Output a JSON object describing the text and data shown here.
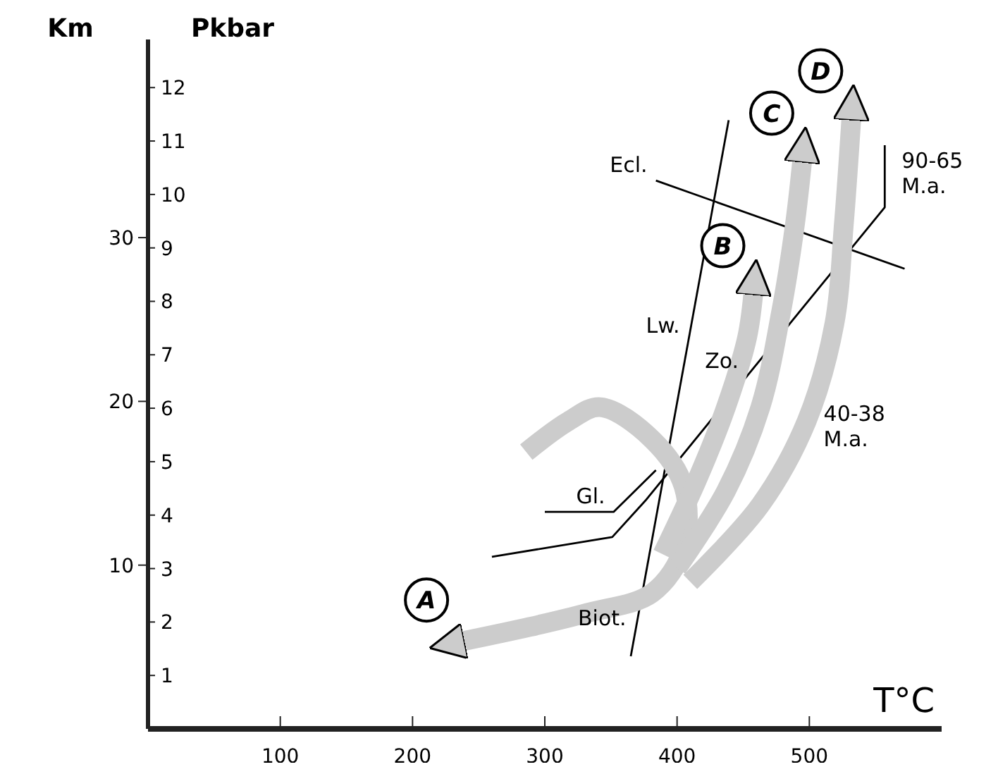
{
  "chart_data": {
    "type": "line",
    "xlabel": "T°C",
    "ylabel": "Pkbar",
    "y2label": "Km",
    "xlim": [
      0,
      600
    ],
    "xticks": [
      100,
      200,
      300,
      400,
      500
    ],
    "ylim": [
      0,
      12.9
    ],
    "yticks": [
      1,
      2,
      3,
      4,
      5,
      6,
      7,
      8,
      9,
      10,
      11,
      12
    ],
    "y2lim": [
      0,
      42.1
    ],
    "y2ticks": [
      10,
      20,
      30
    ],
    "marker": "none",
    "line_style": "solid",
    "series": [
      {
        "color": "#000000",
        "x": [
          439,
          365
        ],
        "values": [
          11.39,
          1.36
        ]
      },
      {
        "color": "#000000",
        "x": [
          384,
          572
        ],
        "values": [
          10.26,
          8.61
        ]
      },
      {
        "color": "#000000",
        "x": [
          557,
          557,
          376,
          351,
          260
        ],
        "values": [
          10.92,
          9.76,
          4.27,
          3.59,
          3.22
        ]
      },
      {
        "color": "#000000",
        "x": [
          300,
          352,
          384
        ],
        "values": [
          4.06,
          4.06,
          4.84
        ]
      },
      {
        "name": "A",
        "color": "#cccccc",
        "x": [
          286,
          318,
          342,
          381,
          405,
          405,
          381,
          332,
          289,
          234
        ],
        "values": [
          5.18,
          5.76,
          6.02,
          5.42,
          4.53,
          3.4,
          2.54,
          2.17,
          1.91,
          1.62
        ]
      },
      {
        "name": "B",
        "color": "#cccccc",
        "x": [
          389,
          416,
          437,
          453,
          458
        ],
        "values": [
          3.27,
          4.71,
          6.02,
          7.33,
          8.25
        ]
      },
      {
        "name": "C",
        "color": "#cccccc",
        "x": [
          400,
          437,
          463,
          479,
          489,
          495
        ],
        "values": [
          3.01,
          4.45,
          6.02,
          7.85,
          9.42,
          10.73
        ]
      },
      {
        "name": "D",
        "color": "#cccccc",
        "x": [
          410,
          463,
          498,
          519,
          526,
          532
        ],
        "values": [
          2.75,
          4.19,
          5.76,
          7.59,
          9.42,
          11.52
        ]
      }
    ],
    "annotations": [
      {
        "text": "Ecl.",
        "x": 384,
        "y": 10.26
      },
      {
        "text": "Lw.",
        "x": 408.5,
        "y": 7.25
      },
      {
        "text": "Zo.",
        "x": 453,
        "y": 6.6
      },
      {
        "text": "Gl.",
        "x": 352,
        "y": 4.06
      },
      {
        "text": "Biot.",
        "x": 368,
        "y": 1.78
      },
      {
        "text": "90-65 M.a.",
        "x": 557,
        "y": 10.5
      },
      {
        "text": "40-38 M.a.",
        "x": 498,
        "y": 5.76
      }
    ]
  }
}
